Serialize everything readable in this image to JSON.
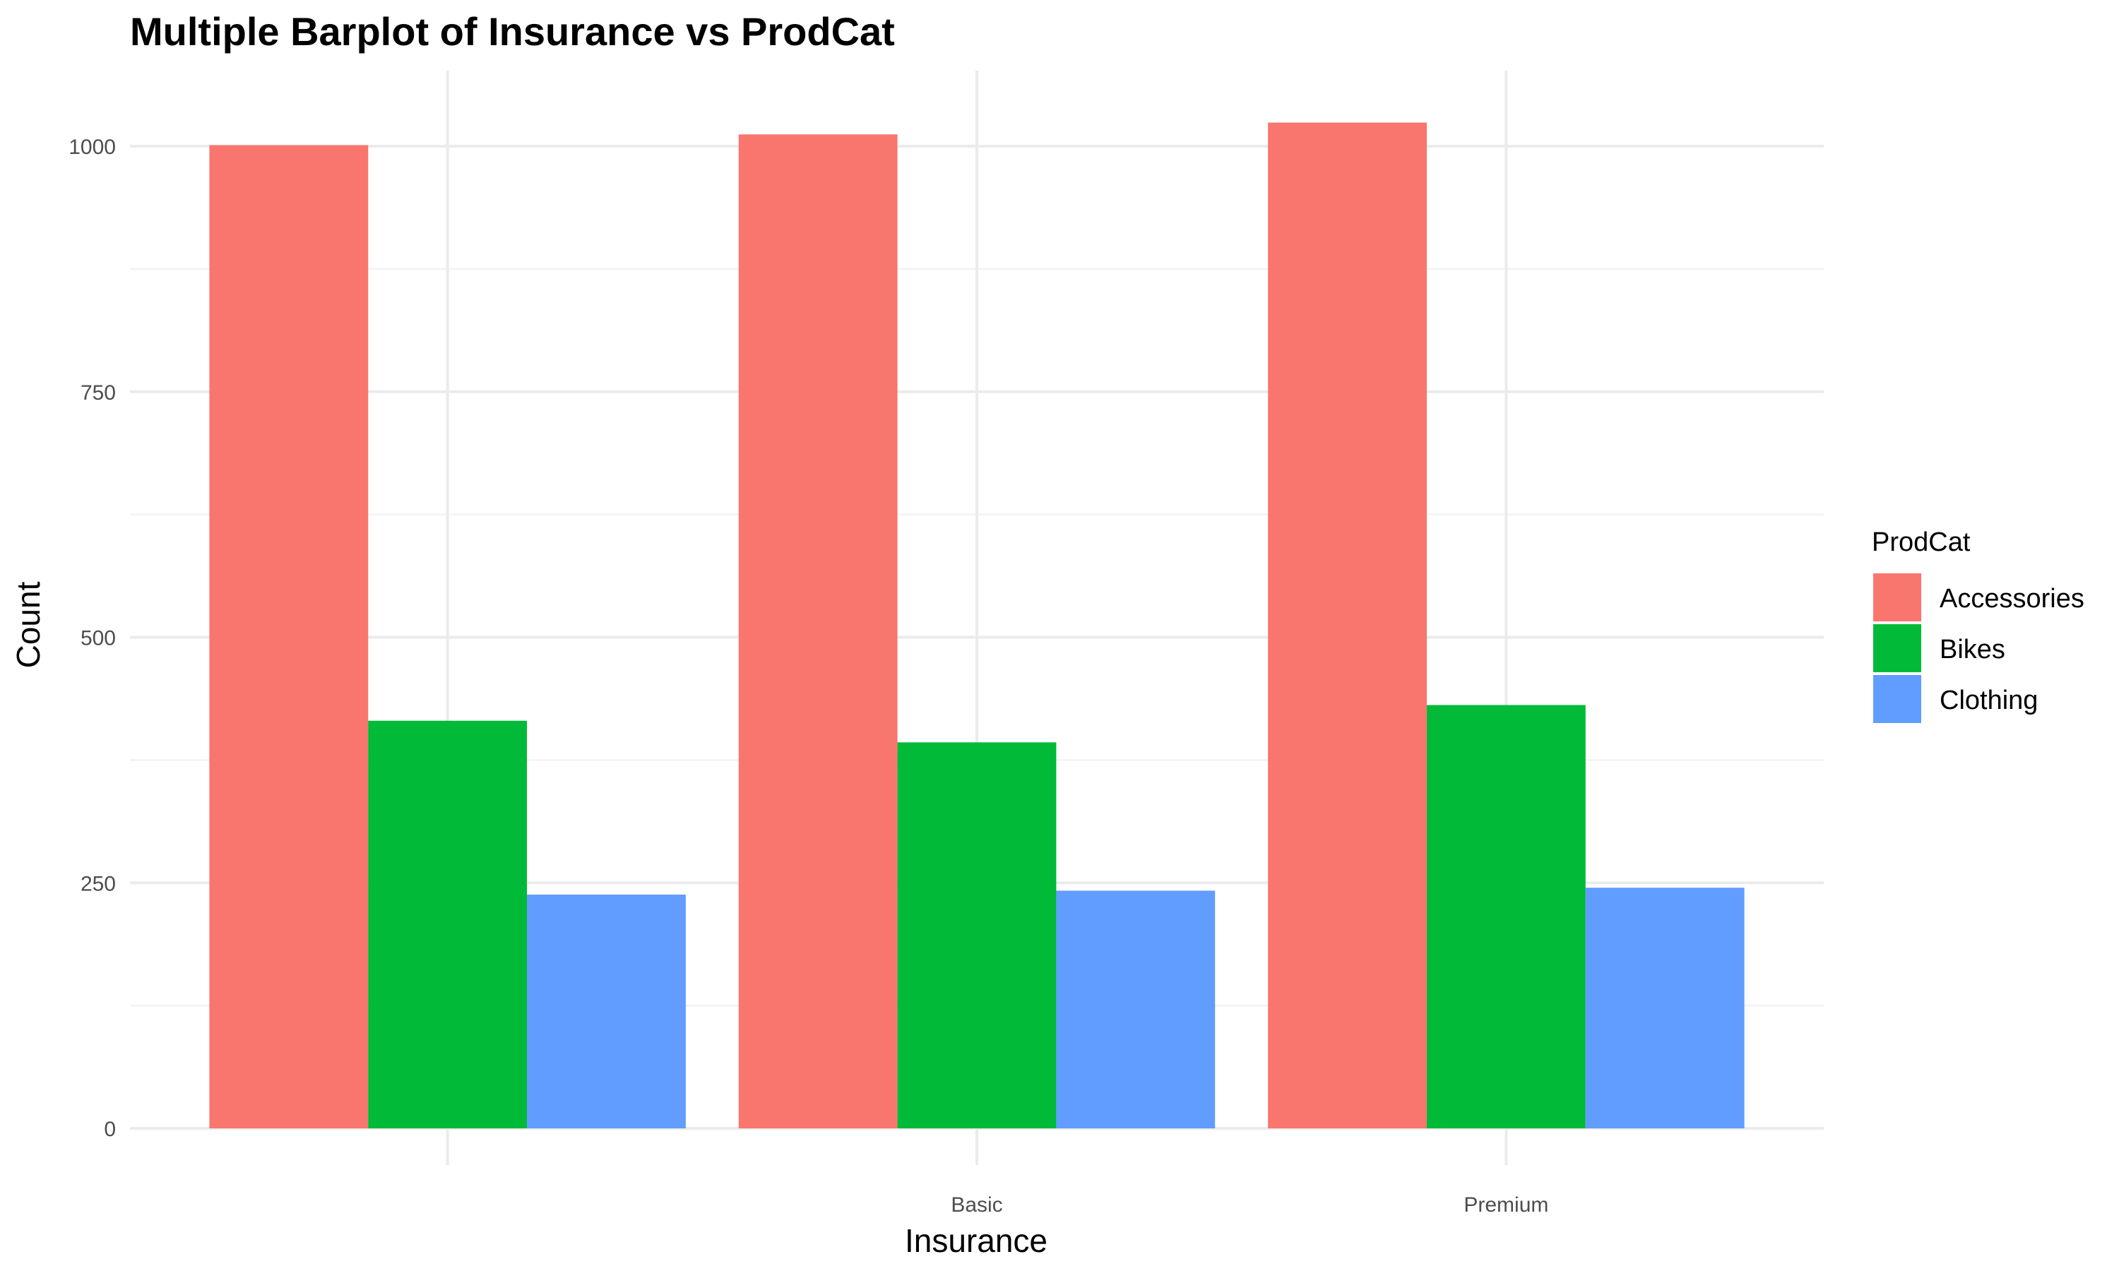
{
  "chart_data": {
    "type": "bar",
    "title": "Multiple Barplot of Insurance vs ProdCat",
    "xlabel": "Insurance",
    "ylabel": "Count",
    "categories": [
      "",
      "Basic",
      "Premium"
    ],
    "series": [
      {
        "name": "Accessories",
        "color": "#F8766D",
        "values": [
          1001,
          1012,
          1024
        ]
      },
      {
        "name": "Bikes",
        "color": "#00BA38",
        "values": [
          415,
          393,
          431
        ]
      },
      {
        "name": "Clothing",
        "color": "#619CFF",
        "values": [
          238,
          242,
          245
        ]
      }
    ],
    "yticks": [
      0,
      250,
      500,
      750,
      1000
    ],
    "ylim": [
      0,
      1075
    ],
    "grid": true,
    "legend": {
      "title": "ProdCat",
      "position": "right"
    }
  }
}
